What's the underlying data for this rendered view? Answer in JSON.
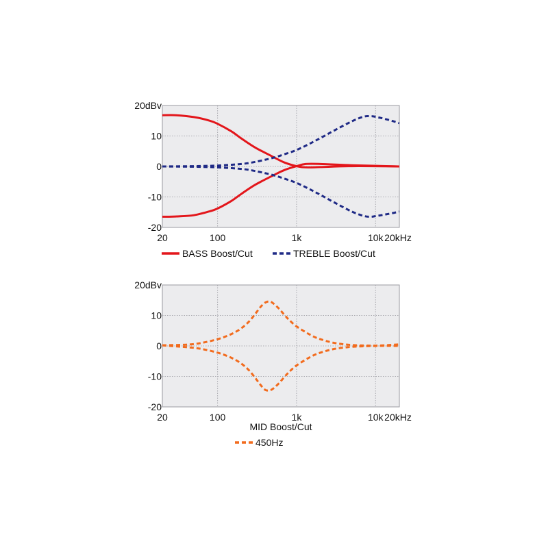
{
  "chart_data": [
    {
      "type": "line",
      "x_scale": "log",
      "xlim": [
        20,
        20000
      ],
      "ylim": [
        -20,
        20
      ],
      "grid": true,
      "legend_position": "bottom",
      "x_ticks": [
        {
          "value": 20,
          "label": "20"
        },
        {
          "value": 100,
          "label": "100"
        },
        {
          "value": 1000,
          "label": "1k"
        },
        {
          "value": 10000,
          "label": "10k"
        },
        {
          "value": 20000,
          "label": "20kHz"
        }
      ],
      "y_ticks": [
        {
          "value": 20,
          "label": "20dBv"
        },
        {
          "value": 10,
          "label": "10"
        },
        {
          "value": 0,
          "label": "0"
        },
        {
          "value": -10,
          "label": "-10"
        },
        {
          "value": -20,
          "label": "-20"
        }
      ],
      "legend": [
        {
          "label": "BASS Boost/Cut",
          "color": "#e3161b",
          "style": "solid"
        },
        {
          "label": "TREBLE Boost/Cut",
          "color": "#1f2a86",
          "style": "dashed"
        }
      ],
      "series": [
        {
          "color": "#e3161b",
          "style": "solid",
          "x": [
            20,
            30,
            50,
            80,
            100,
            150,
            200,
            300,
            500,
            700,
            1000,
            1300,
            2000,
            5000,
            20000
          ],
          "y": [
            16.8,
            16.8,
            16.2,
            15,
            14,
            11.5,
            9.2,
            6.2,
            3.2,
            1.3,
            0.1,
            -0.3,
            -0.2,
            0.1,
            0
          ]
        },
        {
          "color": "#e3161b",
          "style": "solid",
          "x": [
            20,
            30,
            50,
            80,
            100,
            150,
            200,
            300,
            500,
            700,
            1000,
            1300,
            2000,
            5000,
            20000
          ],
          "y": [
            -16.5,
            -16.4,
            -16,
            -14.7,
            -13.8,
            -11.3,
            -9,
            -6,
            -3,
            -1.2,
            0.1,
            0.8,
            0.8,
            0.4,
            0
          ]
        },
        {
          "color": "#1f2a86",
          "style": "dashed",
          "x": [
            20,
            50,
            100,
            200,
            300,
            500,
            700,
            1000,
            1500,
            2000,
            3000,
            5000,
            7000,
            8500,
            10000,
            15000,
            20000
          ],
          "y": [
            0,
            0.1,
            0.3,
            0.8,
            1.5,
            2.8,
            4,
            5.4,
            7.6,
            9.3,
            11.8,
            14.8,
            16.3,
            16.5,
            16.3,
            15.2,
            14.2
          ]
        },
        {
          "color": "#1f2a86",
          "style": "dashed",
          "x": [
            20,
            50,
            100,
            200,
            300,
            500,
            700,
            1000,
            1500,
            2000,
            3000,
            5000,
            7000,
            8500,
            10000,
            15000,
            20000
          ],
          "y": [
            0,
            -0.1,
            -0.3,
            -0.8,
            -1.5,
            -2.8,
            -4,
            -5.4,
            -7.6,
            -9.3,
            -11.8,
            -14.8,
            -16.2,
            -16.5,
            -16.3,
            -15.5,
            -14.8
          ]
        }
      ]
    },
    {
      "type": "line",
      "x_scale": "log",
      "xlim": [
        20,
        20000
      ],
      "ylim": [
        -20,
        20
      ],
      "grid": true,
      "legend_position": "bottom",
      "x_ticks": [
        {
          "value": 20,
          "label": "20"
        },
        {
          "value": 100,
          "label": "100"
        },
        {
          "value": 1000,
          "label": "1k"
        },
        {
          "value": 10000,
          "label": "10k"
        },
        {
          "value": 20000,
          "label": "20kHz"
        }
      ],
      "y_ticks": [
        {
          "value": 20,
          "label": "20dBv"
        },
        {
          "value": 10,
          "label": "10"
        },
        {
          "value": 0,
          "label": "0"
        },
        {
          "value": -10,
          "label": "-10"
        },
        {
          "value": -20,
          "label": "-20"
        }
      ],
      "legend_title": "MID Boost/Cut",
      "legend": [
        {
          "label": "450Hz",
          "color": "#f26b1d",
          "style": "dashed"
        }
      ],
      "series": [
        {
          "color": "#f26b1d",
          "style": "dashed",
          "x": [
            20,
            40,
            60,
            100,
            150,
            200,
            250,
            300,
            350,
            400,
            450,
            500,
            600,
            700,
            800,
            1000,
            1500,
            2000,
            3000,
            5000,
            10000,
            20000
          ],
          "y": [
            0.2,
            0.4,
            0.9,
            2.2,
            3.9,
            5.8,
            8,
            10.5,
            12.8,
            14.2,
            14.6,
            14.1,
            12.2,
            10.2,
            8.6,
            6.4,
            3.6,
            2.2,
            1,
            0.3,
            0.1,
            0.5
          ]
        },
        {
          "color": "#f26b1d",
          "style": "dashed",
          "x": [
            20,
            40,
            60,
            100,
            150,
            200,
            250,
            300,
            350,
            400,
            450,
            500,
            600,
            700,
            800,
            1000,
            1500,
            2000,
            3000,
            5000,
            10000,
            20000
          ],
          "y": [
            0.2,
            -0.4,
            -0.9,
            -2.2,
            -3.9,
            -5.8,
            -8,
            -10.5,
            -12.8,
            -14.4,
            -14.6,
            -14.1,
            -12.2,
            -10.2,
            -8.6,
            -6.4,
            -3.6,
            -2.2,
            -1,
            -0.3,
            0,
            0
          ]
        }
      ]
    }
  ]
}
